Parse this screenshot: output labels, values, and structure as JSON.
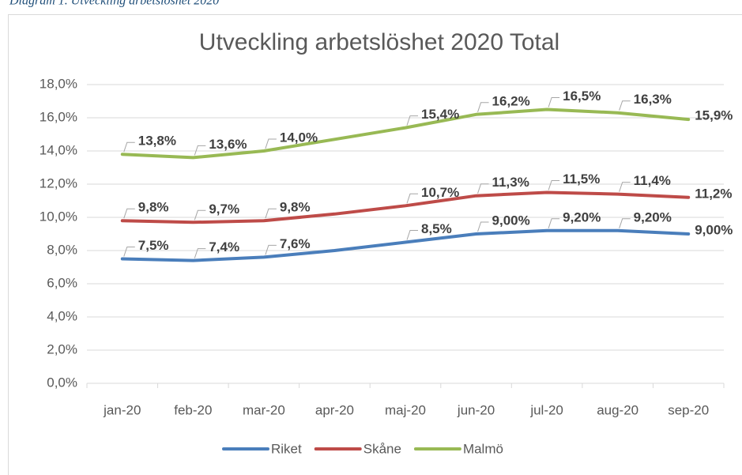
{
  "caption": "Diagram 1. Utveckling arbetslöshet 2020",
  "chart_data": {
    "type": "line",
    "title": "Utveckling arbetslöshet 2020 Total",
    "categories": [
      "jan-20",
      "feb-20",
      "mar-20",
      "apr-20",
      "maj-20",
      "jun-20",
      "jul-20",
      "aug-20",
      "sep-20"
    ],
    "series": [
      {
        "name": "Riket",
        "color": "#4a7ebb",
        "values": [
          7.5,
          7.4,
          7.6,
          8.0,
          8.5,
          9.0,
          9.2,
          9.2,
          9.0
        ],
        "value_labels": [
          "7,5%",
          "7,4%",
          "7,6%",
          null,
          "8,5%",
          "9,00%",
          "9,20%",
          "9,20%",
          "9,00%"
        ]
      },
      {
        "name": "Skåne",
        "color": "#be4b48",
        "values": [
          9.8,
          9.7,
          9.8,
          10.2,
          10.7,
          11.3,
          11.5,
          11.4,
          11.2
        ],
        "value_labels": [
          "9,8%",
          "9,7%",
          "9,8%",
          null,
          "10,7%",
          "11,3%",
          "11,5%",
          "11,4%",
          "11,2%"
        ]
      },
      {
        "name": "Malmö",
        "color": "#98b954",
        "values": [
          13.8,
          13.6,
          14.0,
          14.7,
          15.4,
          16.2,
          16.5,
          16.3,
          15.9
        ],
        "value_labels": [
          "13,8%",
          "13,6%",
          "14,0%",
          null,
          "15,4%",
          "16,2%",
          "16,5%",
          "16,3%",
          "15,9%"
        ]
      }
    ],
    "ylim": [
      0,
      18
    ],
    "yticks": [
      {
        "value": 0,
        "label": "0,0%"
      },
      {
        "value": 2,
        "label": "2,0%"
      },
      {
        "value": 4,
        "label": "4,0%"
      },
      {
        "value": 6,
        "label": "6,0%"
      },
      {
        "value": 8,
        "label": "8,0%"
      },
      {
        "value": 10,
        "label": "10,0%"
      },
      {
        "value": 12,
        "label": "12,0%"
      },
      {
        "value": 14,
        "label": "14,0%"
      },
      {
        "value": 16,
        "label": "16,0%"
      },
      {
        "value": 18,
        "label": "18,0%"
      }
    ],
    "grid": true,
    "legend": "bottom"
  }
}
